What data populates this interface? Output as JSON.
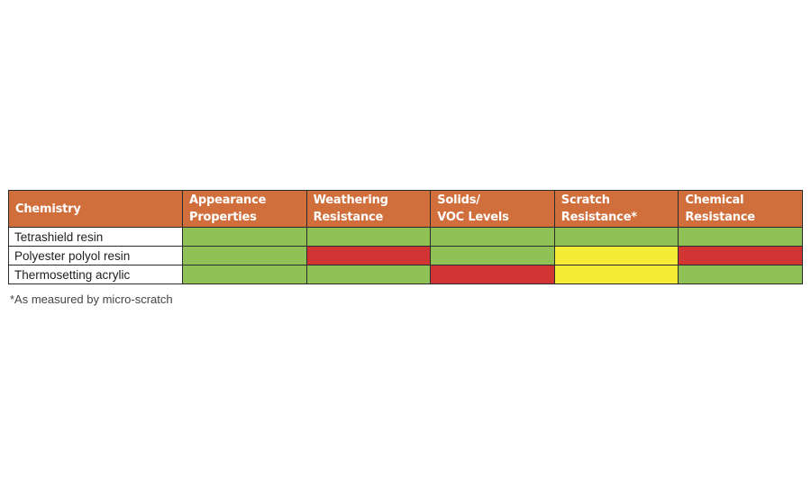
{
  "table": {
    "headers": [
      {
        "lines": [
          "Chemistry"
        ]
      },
      {
        "lines": [
          "Appearance",
          "Properties"
        ]
      },
      {
        "lines": [
          "Weathering",
          "Resistance"
        ]
      },
      {
        "lines": [
          "Solids/",
          "VOC Levels"
        ]
      },
      {
        "lines": [
          "Scratch",
          "Resistance*"
        ]
      },
      {
        "lines": [
          "Chemical",
          "Resistance"
        ]
      }
    ],
    "rows": [
      {
        "chemistry": "Tetrashield resin",
        "ratings": [
          "green",
          "green",
          "green",
          "green",
          "green"
        ]
      },
      {
        "chemistry": "Polyester polyol resin",
        "ratings": [
          "green",
          "red",
          "green",
          "yellow",
          "red"
        ]
      },
      {
        "chemistry": "Thermosetting acrylic",
        "ratings": [
          "green",
          "green",
          "red",
          "yellow",
          "green"
        ]
      }
    ]
  },
  "colors": {
    "header_bg": "#d06e3c",
    "green": "#8fc156",
    "red": "#d03433",
    "yellow": "#f4ec37"
  },
  "footnote": "*As measured by micro-scratch"
}
